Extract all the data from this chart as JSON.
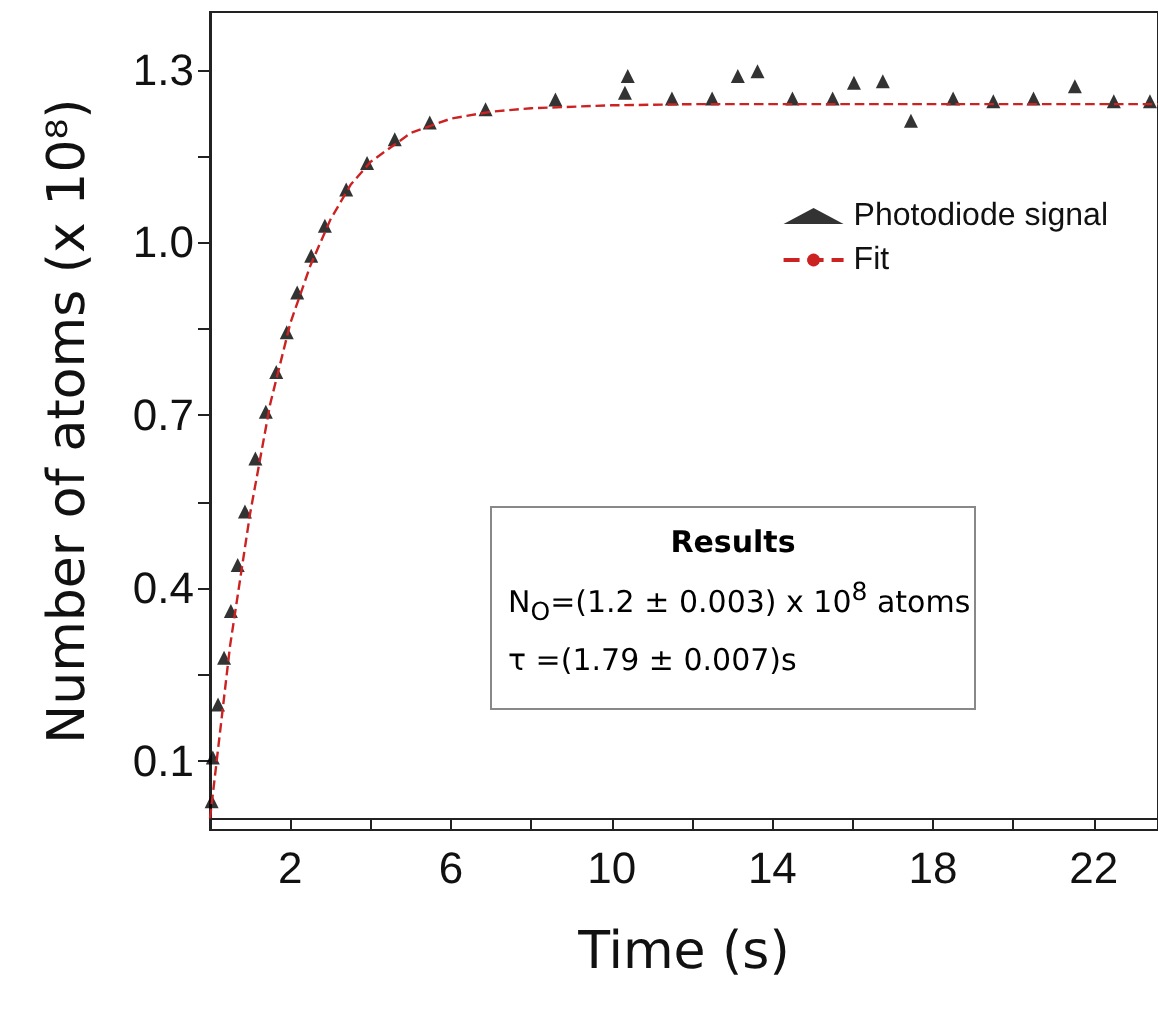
{
  "chart_data": {
    "type": "scatter",
    "xlabel": "Time (s)",
    "ylabel": "Number of atoms (x 10⁸)",
    "xlim": [
      0,
      23.6
    ],
    "ylim": [
      -0.02,
      1.4
    ],
    "xticks": [
      {
        "value": 0,
        "label": null
      },
      2,
      {
        "value": 4,
        "label": null
      },
      6,
      {
        "value": 8,
        "label": null
      },
      10,
      {
        "value": 12,
        "label": null
      },
      14,
      {
        "value": 16,
        "label": null
      },
      18,
      {
        "value": 20,
        "label": null
      },
      22
    ],
    "yticks": [
      0.1,
      {
        "value": 0.25,
        "label": null
      },
      0.4,
      {
        "value": 0.55,
        "label": null
      },
      0.7,
      {
        "value": 0.85,
        "label": null
      },
      {
        "value": 1,
        "label": "1.0"
      },
      {
        "value": 1.15,
        "label": null
      },
      1.3
    ],
    "grid": false,
    "legend": "top right",
    "annotations": [
      "Results",
      "N$_{O}$=(1.2 ± 0.003) x 10$^{8}$ atoms",
      "τ =(1.79 ± 0.007)s"
    ],
    "series": [
      {
        "name": "Photodiode signal",
        "marker": "triangle",
        "color": "#000000",
        "x": [
          0.04,
          0.07,
          0.2,
          0.35,
          0.52,
          0.69,
          0.87,
          1.13,
          1.39,
          1.65,
          1.91,
          2.17,
          2.52,
          2.86,
          3.39,
          3.91,
          4.6,
          5.47,
          6.86,
          8.6,
          10.33,
          10.4,
          11.5,
          12.5,
          13.14,
          13.63,
          14.5,
          15.5,
          16.03,
          16.75,
          17.45,
          18.5,
          19.5,
          20.5,
          21.53,
          22.5,
          23.4
        ],
        "values": [
          0.03,
          0.106,
          0.198,
          0.279,
          0.36,
          0.44,
          0.533,
          0.625,
          0.706,
          0.775,
          0.844,
          0.913,
          0.977,
          1.029,
          1.092,
          1.138,
          1.179,
          1.208,
          1.231,
          1.248,
          1.26,
          1.289,
          1.25,
          1.25,
          1.289,
          1.297,
          1.25,
          1.25,
          1.277,
          1.28,
          1.211,
          1.25,
          1.245,
          1.25,
          1.271,
          1.245,
          1.245
        ]
      },
      {
        "name": "Fit",
        "type": "line",
        "marker": "none",
        "line_style": "dashed",
        "color": "#cc2222",
        "x": [
          0,
          0.5,
          1,
          1.5,
          2,
          2.5,
          3,
          3.5,
          4,
          5,
          6,
          7,
          8,
          10,
          12,
          15,
          18,
          21,
          23.6
        ],
        "values": [
          0,
          0.3,
          0.53,
          0.72,
          0.86,
          0.96,
          1.04,
          1.1,
          1.14,
          1.19,
          1.215,
          1.227,
          1.233,
          1.238,
          1.24,
          1.24,
          1.24,
          1.24,
          1.24
        ]
      }
    ]
  }
}
